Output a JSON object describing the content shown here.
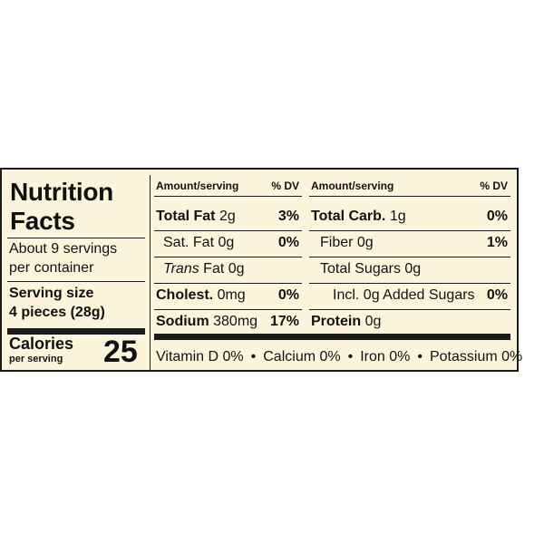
{
  "panel": {
    "title_line1": "Nutrition",
    "title_line2": "Facts",
    "servings_line1": "About 9 servings",
    "servings_line2": "per container",
    "serving_size_label": "Serving size",
    "serving_size_value": "4 pieces (28g)",
    "calories_label": "Calories",
    "calories_sub": "per serving",
    "calories_value": "25"
  },
  "left_table": {
    "header_amount": "Amount/serving",
    "header_dv": "% DV",
    "rows": [
      {
        "name": "Total Fat",
        "amount": "2g",
        "dv": "3%"
      },
      {
        "name": "Sat. Fat",
        "amount": "0g",
        "dv": "0%"
      },
      {
        "name": "Trans",
        "amount": "Fat 0g",
        "dv": ""
      },
      {
        "name": "Cholest.",
        "amount": "0mg",
        "dv": "0%"
      },
      {
        "name": "Sodium",
        "amount": "380mg",
        "dv": "17%"
      }
    ]
  },
  "right_table": {
    "header_amount": "Amount/serving",
    "header_dv": "% DV",
    "rows": [
      {
        "name": "Total Carb.",
        "amount": "1g",
        "dv": "0%"
      },
      {
        "name": "Fiber",
        "amount": "0g",
        "dv": "1%"
      },
      {
        "name": "Total Sugars",
        "amount": "0g",
        "dv": ""
      },
      {
        "name": "Incl. 0g Added Sugars",
        "amount": "",
        "dv": "0%"
      },
      {
        "name": "Protein",
        "amount": "0g",
        "dv": ""
      }
    ]
  },
  "vitamins": {
    "v1": "Vitamin D 0%",
    "v2": "Calcium 0%",
    "v3": "Iron 0%",
    "v4": "Potassium 0%",
    "separator": "•"
  }
}
